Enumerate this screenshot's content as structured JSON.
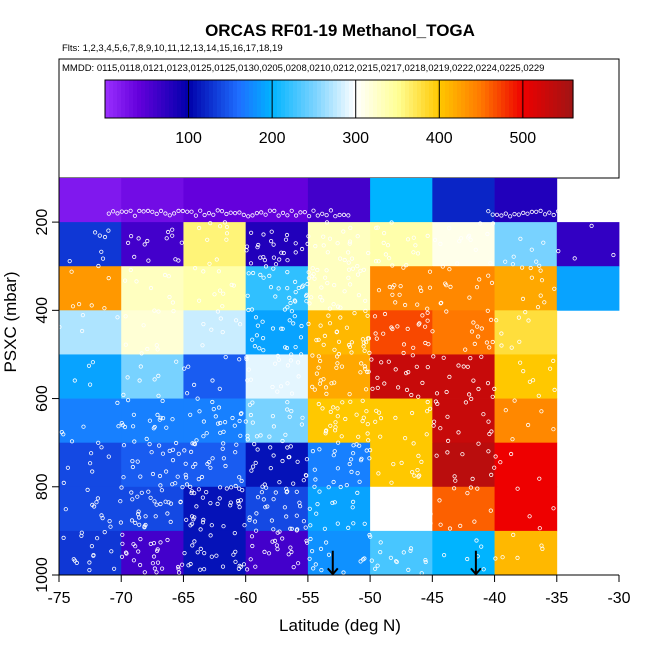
{
  "chart_data": {
    "type": "heatmap",
    "title": "ORCAS RF01-19 Methanol_TOGA",
    "flights_line": "Flts: 1,2,3,4,5,6,7,8,9,10,11,12,13,14,15,16,17,18,19",
    "dates_line": "MMDD: 0115,0118,0121,0123,0125,0125,0130,0205,0208,0210,0212,0215,0217,0218,0219,0222,0224,0225,0229",
    "xlabel": "Latitude (deg N)",
    "ylabel": "PSXC (mbar)",
    "xlim": [
      -75,
      -30
    ],
    "ylim": [
      1000,
      100
    ],
    "x_ticks": [
      -75,
      -70,
      -65,
      -60,
      -55,
      -50,
      -45,
      -40,
      -35,
      -30
    ],
    "y_ticks": [
      200,
      400,
      600,
      800,
      1000
    ],
    "colorbar": {
      "min": 0,
      "max": 560,
      "ticks": [
        100,
        200,
        300,
        400,
        500
      ]
    },
    "lat_bins": [
      -75,
      -70,
      -65,
      -60,
      -55,
      -50,
      -45,
      -40,
      -35
    ],
    "pressure_bins": [
      100,
      200,
      300,
      400,
      500,
      600,
      700,
      800,
      900,
      1000
    ],
    "values": [
      [
        20,
        30,
        40,
        40,
        60,
        200,
        120,
        80,
        null
      ],
      [
        130,
        60,
        360,
        80,
        330,
        340,
        310,
        250,
        70
      ],
      [
        430,
        330,
        340,
        220,
        330,
        440,
        440,
        420,
        190
      ],
      [
        270,
        320,
        280,
        190,
        410,
        470,
        450,
        380,
        null
      ],
      [
        190,
        250,
        150,
        290,
        420,
        530,
        530,
        400,
        null
      ],
      [
        170,
        170,
        170,
        250,
        400,
        400,
        530,
        440,
        null
      ],
      [
        140,
        150,
        150,
        110,
        170,
        400,
        540,
        500,
        null
      ],
      [
        140,
        140,
        110,
        140,
        190,
        300,
        460,
        500,
        null
      ],
      [
        130,
        60,
        110,
        60,
        180,
        230,
        200,
        410,
        null
      ]
    ],
    "arrows_lat": [
      -53,
      -41.5
    ]
  }
}
